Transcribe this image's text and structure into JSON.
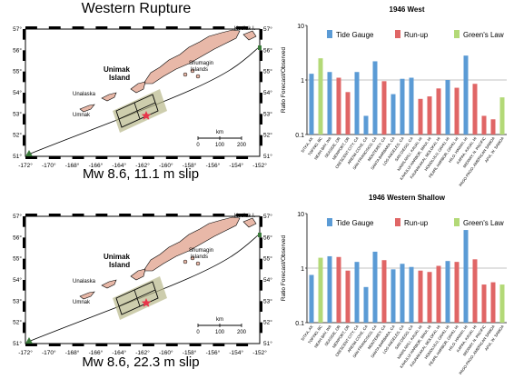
{
  "page_title": "Western Rupture",
  "maps": [
    {
      "caption": "Mw 8.6, 11.1 m slip",
      "lon_ticks": [
        "-172°",
        "-170°",
        "-168°",
        "-166°",
        "-164°",
        "-162°",
        "-160°",
        "-158°",
        "-156°",
        "-154°",
        "-152°"
      ],
      "lat_ticks": [
        "57°",
        "56°",
        "55°",
        "54°",
        "53°",
        "52°",
        "51°"
      ],
      "labels": {
        "kodiak": "Kodiak I.",
        "unimak": "Unimak",
        "island": "Island",
        "shumagin": "Shumagin",
        "islands": "Islands",
        "unalaska": "Unalaska",
        "umnak": "Umnak"
      },
      "scale": {
        "unit": "km",
        "ticks": [
          "0",
          "100",
          "200"
        ]
      }
    },
    {
      "caption": "Mw 8.6, 22.3 m slip",
      "lon_ticks": [
        "-172°",
        "-170°",
        "-168°",
        "-166°",
        "-164°",
        "-162°",
        "-160°",
        "-158°",
        "-156°",
        "-154°",
        "-152°"
      ],
      "lat_ticks": [
        "57°",
        "56°",
        "55°",
        "54°",
        "53°",
        "52°",
        "51°"
      ],
      "labels": {
        "kodiak": "Kodiak I.",
        "unimak": "Unimak",
        "island": "Island",
        "shumagin": "Shumagin",
        "islands": "Islands",
        "unalaska": "Unalaska",
        "umnak": "Umnak"
      },
      "scale": {
        "unit": "km",
        "ticks": [
          "0",
          "100",
          "200"
        ]
      }
    }
  ],
  "colors": {
    "tide_gauge": "#5b9bd5",
    "run_up": "#e06666",
    "greens_law": "#b3d977"
  },
  "chart_data": [
    {
      "type": "bar",
      "title": "1946 West",
      "ylabel": "Ratio Forecast/Observed",
      "yscale": "log",
      "ylim": [
        0.1,
        10
      ],
      "yticks": [
        "10",
        "1",
        "0.1"
      ],
      "grid": "horizontal at 1",
      "legend": [
        "Tide Gauge",
        "Run-up",
        "Green's Law"
      ],
      "legend_position": "top",
      "categories": [
        "SITKA, AK",
        "TOFINO, BC",
        "NEAH BAY, WA",
        "SEASIDE, OR",
        "NEWPORT, OR",
        "CRESCENT CITY, CA",
        "ARENA COVE, CA",
        "SAN FRANCISCO, CA",
        "MONTEREY, CA",
        "SANTA BARBARA, CA",
        "LOS ANGELES, CA",
        "SAN DIEGO, CA",
        "NAWILIWILI, KAUAI, HI",
        "KAHULUI HARBOR, MAUI, HI",
        "KAUNAKAKAI, MOLOKAI, HI",
        "HONOLULU, OAHU, HI",
        "PEARL HARBOR, OAHU, HI",
        "HILO, HAWAII, HI",
        "KAPAA, KAUAI, HI",
        "MIDWAY, N. PACIFIC",
        "PAGO PAGO, AMERICAN SAMOA",
        "APIA, W. SAMOA"
      ],
      "series": [
        {
          "name": "Tide Gauge",
          "color": "#5b9bd5",
          "values": [
            1.3,
            null,
            1.4,
            null,
            null,
            1.4,
            0.22,
            2.2,
            null,
            0.55,
            1.05,
            1.1,
            null,
            null,
            null,
            1.0,
            null,
            2.8,
            null,
            null,
            null,
            null
          ]
        },
        {
          "name": "Run-up",
          "color": "#e06666",
          "values": [
            null,
            null,
            null,
            1.1,
            0.6,
            null,
            null,
            null,
            0.95,
            null,
            null,
            null,
            0.45,
            0.5,
            0.7,
            null,
            0.72,
            null,
            0.85,
            0.22,
            0.19,
            null
          ]
        },
        {
          "name": "Green's Law",
          "color": "#b3d977",
          "values": [
            null,
            2.5,
            null,
            null,
            null,
            null,
            null,
            null,
            null,
            null,
            null,
            null,
            null,
            null,
            null,
            null,
            null,
            null,
            null,
            null,
            null,
            0.48
          ]
        }
      ]
    },
    {
      "type": "bar",
      "title": "1946 Western Shallow",
      "ylabel": "Ratio Forecast/Observed",
      "yscale": "log",
      "ylim": [
        0.1,
        10
      ],
      "yticks": [
        "10",
        "1",
        "0.1"
      ],
      "grid": "horizontal at 1",
      "legend": [
        "Tide Gauge",
        "Run-up",
        "Green's Law"
      ],
      "legend_position": "top",
      "categories": [
        "SITKA, AK",
        "TOFINO, BC",
        "NEAH BAY, WA",
        "SEASIDE, OR",
        "NEWPORT, OR",
        "CRESCENT CITY, CA",
        "ARENA COVE, CA",
        "SAN FRANCISCO, CA",
        "MONTEREY, CA",
        "SANTA BARBARA, CA",
        "LOS ANGELES, CA",
        "SAN DIEGO, CA",
        "NAWILIWILI, KAUAI, HI",
        "KAHULUI HARBOR, MAUI, HI",
        "KAUNAKAKAI, MOLOKAI, HI",
        "HONOLULU, OAHU, HI",
        "PEARL HARBOR, OAHU, HI",
        "HILO, HAWAII, HI",
        "KAPAA, KAUAI, HI",
        "MIDWAY, N. PACIFIC",
        "PAGO PAGO, AMERICAN SAMOA",
        "APIA, W. SAMOA"
      ],
      "series": [
        {
          "name": "Tide Gauge",
          "color": "#5b9bd5",
          "values": [
            0.75,
            null,
            1.65,
            null,
            null,
            1.3,
            0.45,
            2.0,
            null,
            0.95,
            1.2,
            1.05,
            null,
            null,
            null,
            1.35,
            null,
            5.0,
            null,
            null,
            null,
            null
          ]
        },
        {
          "name": "Run-up",
          "color": "#e06666",
          "values": [
            null,
            null,
            null,
            1.6,
            0.9,
            null,
            null,
            null,
            1.4,
            null,
            null,
            null,
            0.9,
            0.85,
            1.1,
            null,
            1.3,
            null,
            1.45,
            0.5,
            0.55,
            null
          ]
        },
        {
          "name": "Green's Law",
          "color": "#b3d977",
          "values": [
            null,
            1.55,
            null,
            null,
            null,
            null,
            null,
            null,
            null,
            null,
            null,
            null,
            null,
            null,
            null,
            null,
            null,
            null,
            null,
            null,
            null,
            0.5
          ]
        }
      ]
    }
  ]
}
